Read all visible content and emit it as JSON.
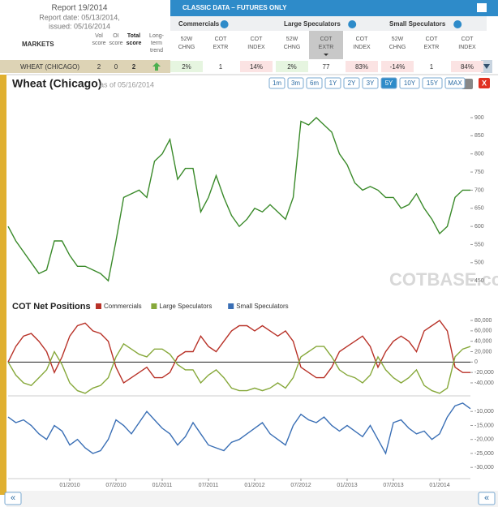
{
  "header": {
    "report": "Report 19/2014",
    "report_date": "Report date: 05/13/2014,",
    "issued": "issued: 05/16/2014",
    "markets": "MARKETS",
    "columns": [
      [
        "Vol",
        "score"
      ],
      [
        "OI",
        "score"
      ],
      [
        "Total",
        "score"
      ],
      [
        "Long-",
        "term",
        "trend"
      ]
    ]
  },
  "classic": {
    "title": "CLASSIC DATA – FUTURES ONLY",
    "highlight": {
      "group": 1,
      "column": 1
    },
    "groups": [
      {
        "name": "Commercials",
        "columns": [
          [
            "52W",
            "CHNG"
          ],
          [
            "COT",
            "EXTR"
          ],
          [
            "COT",
            "INDEX"
          ]
        ],
        "cells": [
          "2%",
          "1",
          "14%"
        ],
        "cell_colors": [
          "#e6f5e0",
          "#ffffff",
          "#fbe3e3"
        ]
      },
      {
        "name": "Large Speculators",
        "columns": [
          [
            "52W",
            "CHNG"
          ],
          [
            "COT",
            "EXTR"
          ],
          [
            "COT",
            "INDEX"
          ]
        ],
        "cells": [
          "2%",
          "77",
          "83%"
        ],
        "cell_colors": [
          "#e6f5e0",
          "#ffffff",
          "#fbe3e3"
        ]
      },
      {
        "name": "Small Speculators",
        "columns": [
          [
            "52W",
            "CHNG"
          ],
          [
            "COT",
            "EXTR"
          ],
          [
            "COT",
            "INDEX"
          ]
        ],
        "cells": [
          "-14%",
          "1",
          "84%"
        ],
        "cell_colors": [
          "#fbe3e3",
          "#ffffff",
          "#fbe3e3"
        ]
      }
    ]
  },
  "row": {
    "market": "WHEAT (CHICAGO)",
    "vol": 2,
    "oi": 0,
    "total": 2
  },
  "chart_header": {
    "title": "Wheat (Chicago)",
    "as_of": "as of 05/16/2014",
    "ranges": [
      "1m",
      "3m",
      "6m",
      "1Y",
      "2Y",
      "3Y",
      "5Y",
      "10Y",
      "15Y",
      "MAX"
    ],
    "active_range": "5Y",
    "close": "X",
    "watermark": "COTBASE.com",
    "nav": [
      "«",
      "«"
    ]
  },
  "chart_data": [
    {
      "type": "line",
      "color": "#3a8a2a",
      "x": [
        "05/2009",
        "06/2009",
        "07/2009",
        "08/2009",
        "09/2009",
        "10/2009",
        "11/2009",
        "12/2009",
        "01/2010",
        "02/2010",
        "03/2010",
        "04/2010",
        "05/2010",
        "06/2010",
        "07/2010",
        "08/2010",
        "09/2010",
        "10/2010",
        "11/2010",
        "12/2010",
        "01/2011",
        "02/2011",
        "03/2011",
        "04/2011",
        "05/2011",
        "06/2011",
        "07/2011",
        "08/2011",
        "09/2011",
        "10/2011",
        "11/2011",
        "12/2011",
        "01/2012",
        "02/2012",
        "03/2012",
        "04/2012",
        "05/2012",
        "06/2012",
        "07/2012",
        "08/2012",
        "09/2012",
        "10/2012",
        "11/2012",
        "12/2012",
        "01/2013",
        "02/2013",
        "03/2013",
        "04/2013",
        "05/2013",
        "06/2013",
        "07/2013",
        "08/2013",
        "09/2013",
        "10/2013",
        "11/2013",
        "12/2013",
        "01/2014",
        "02/2014",
        "03/2014",
        "04/2014",
        "05/2014"
      ],
      "values": [
        600,
        560,
        530,
        500,
        470,
        480,
        560,
        560,
        520,
        490,
        490,
        480,
        470,
        450,
        560,
        680,
        690,
        700,
        680,
        780,
        800,
        840,
        730,
        760,
        760,
        640,
        680,
        740,
        680,
        630,
        600,
        620,
        650,
        640,
        660,
        640,
        620,
        680,
        890,
        880,
        900,
        880,
        860,
        800,
        770,
        720,
        700,
        710,
        700,
        680,
        680,
        650,
        660,
        690,
        650,
        620,
        580,
        600,
        680,
        700,
        700
      ],
      "ylim": [
        419,
        956
      ],
      "yticks": [
        450,
        500,
        550,
        600,
        650,
        700,
        750,
        800,
        850,
        900
      ]
    },
    {
      "type": "line",
      "title": "COT Net Positions",
      "x": [
        "05/2009",
        "06/2009",
        "07/2009",
        "08/2009",
        "09/2009",
        "10/2009",
        "11/2009",
        "12/2009",
        "01/2010",
        "02/2010",
        "03/2010",
        "04/2010",
        "05/2010",
        "06/2010",
        "07/2010",
        "08/2010",
        "09/2010",
        "10/2010",
        "11/2010",
        "12/2010",
        "01/2011",
        "02/2011",
        "03/2011",
        "04/2011",
        "05/2011",
        "06/2011",
        "07/2011",
        "08/2011",
        "09/2011",
        "10/2011",
        "11/2011",
        "12/2011",
        "01/2012",
        "02/2012",
        "03/2012",
        "04/2012",
        "05/2012",
        "06/2012",
        "07/2012",
        "08/2012",
        "09/2012",
        "10/2012",
        "11/2012",
        "12/2012",
        "01/2013",
        "02/2013",
        "03/2013",
        "04/2013",
        "05/2013",
        "06/2013",
        "07/2013",
        "08/2013",
        "09/2013",
        "10/2013",
        "11/2013",
        "12/2013",
        "01/2014",
        "02/2014",
        "03/2014",
        "04/2014",
        "05/2014"
      ],
      "series": [
        {
          "name": "Commercials",
          "color": "#b83228",
          "values": [
            0,
            30000,
            50000,
            55000,
            40000,
            20000,
            -20000,
            10000,
            50000,
            70000,
            75000,
            60000,
            55000,
            40000,
            -10000,
            -40000,
            -30000,
            -20000,
            -10000,
            -30000,
            -30000,
            -20000,
            10000,
            20000,
            20000,
            50000,
            30000,
            20000,
            40000,
            60000,
            70000,
            70000,
            60000,
            70000,
            60000,
            50000,
            60000,
            40000,
            -10000,
            -20000,
            -30000,
            -30000,
            -10000,
            20000,
            30000,
            40000,
            50000,
            30000,
            -10000,
            20000,
            40000,
            50000,
            40000,
            20000,
            60000,
            70000,
            80000,
            60000,
            -10000,
            -20000,
            -20000
          ]
        },
        {
          "name": "Large Speculators",
          "color": "#86a83a",
          "values": [
            0,
            -25000,
            -40000,
            -45000,
            -30000,
            -15000,
            20000,
            -5000,
            -40000,
            -55000,
            -60000,
            -50000,
            -45000,
            -30000,
            10000,
            35000,
            25000,
            15000,
            10000,
            25000,
            25000,
            15000,
            -5000,
            -15000,
            -15000,
            -40000,
            -25000,
            -15000,
            -30000,
            -50000,
            -55000,
            -55000,
            -50000,
            -55000,
            -50000,
            -40000,
            -50000,
            -30000,
            10000,
            20000,
            30000,
            30000,
            10000,
            -15000,
            -25000,
            -30000,
            -40000,
            -25000,
            10000,
            -15000,
            -30000,
            -40000,
            -30000,
            -15000,
            -45000,
            -55000,
            -60000,
            -50000,
            10000,
            25000,
            30000
          ]
        }
      ],
      "ylim": [
        -65000,
        91000
      ],
      "yticks": [
        {
          "value": 80000,
          "label": "80,000"
        },
        {
          "value": 60000,
          "label": "60,000"
        },
        {
          "value": 40000,
          "label": "40,000"
        },
        {
          "value": 20000,
          "label": "20,000"
        },
        0,
        {
          "value": -20000,
          "label": "-20,000"
        },
        {
          "value": -40000,
          "label": "-40,000"
        }
      ]
    },
    {
      "type": "line",
      "x": [
        "05/2009",
        "06/2009",
        "07/2009",
        "08/2009",
        "09/2009",
        "10/2009",
        "11/2009",
        "12/2009",
        "01/2010",
        "02/2010",
        "03/2010",
        "04/2010",
        "05/2010",
        "06/2010",
        "07/2010",
        "08/2010",
        "09/2010",
        "10/2010",
        "11/2010",
        "12/2010",
        "01/2011",
        "02/2011",
        "03/2011",
        "04/2011",
        "05/2011",
        "06/2011",
        "07/2011",
        "08/2011",
        "09/2011",
        "10/2011",
        "11/2011",
        "12/2011",
        "01/2012",
        "02/2012",
        "03/2012",
        "04/2012",
        "05/2012",
        "06/2012",
        "07/2012",
        "08/2012",
        "09/2012",
        "10/2012",
        "11/2012",
        "12/2012",
        "01/2013",
        "02/2013",
        "03/2013",
        "04/2013",
        "05/2013",
        "06/2013",
        "07/2013",
        "08/2013",
        "09/2013",
        "10/2013",
        "11/2013",
        "12/2013",
        "01/2014",
        "02/2014",
        "03/2014",
        "04/2014",
        "05/2014"
      ],
      "series": [
        {
          "name": "Small Speculators",
          "color": "#3a6fb5",
          "values": [
            -12000,
            -14000,
            -13000,
            -15000,
            -18000,
            -20000,
            -15000,
            -17000,
            -22000,
            -20000,
            -23000,
            -25000,
            -24000,
            -20000,
            -13000,
            -15000,
            -18000,
            -14000,
            -10000,
            -13000,
            -16000,
            -18000,
            -22000,
            -19000,
            -14000,
            -18000,
            -22000,
            -23000,
            -24000,
            -21000,
            -20000,
            -18000,
            -16000,
            -14000,
            -18000,
            -20000,
            -22000,
            -15000,
            -11000,
            -13000,
            -14000,
            -12000,
            -15000,
            -17000,
            -15000,
            -17000,
            -19000,
            -15000,
            -20000,
            -25000,
            -14000,
            -13000,
            -16000,
            -18000,
            -17000,
            -20000,
            -18000,
            -12000,
            -8000,
            -7000,
            -9000
          ]
        }
      ],
      "ylim": [
        -34000,
        -5000
      ],
      "yticks": [
        {
          "value": -10000,
          "label": "-10,000"
        },
        {
          "value": -15000,
          "label": "-15,000"
        },
        {
          "value": -20000,
          "label": "-20,000"
        },
        {
          "value": -25000,
          "label": "-25,000"
        },
        {
          "value": -30000,
          "label": "-30,000"
        }
      ],
      "xticks": [
        "01/2010",
        "07/2010",
        "01/2011",
        "07/2011",
        "01/2012",
        "07/2012",
        "01/2013",
        "07/2013",
        "01/2014"
      ]
    }
  ]
}
